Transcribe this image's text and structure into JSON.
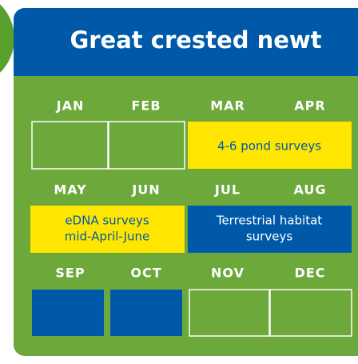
{
  "title": "Great crested newt",
  "months": [
    "JAN",
    "FEB",
    "MAR",
    "APR",
    "MAY",
    "JUN",
    "JUL",
    "AUG",
    "SEP",
    "OCT",
    "NOV",
    "DEC"
  ],
  "surveys": [
    {
      "lines": [
        "4-6 pond surveys"
      ]
    },
    {
      "lines": [
        "eDNA surveys",
        "mid-April-June"
      ]
    },
    {
      "lines": [
        "Terrestrial habitat",
        "surveys"
      ]
    }
  ]
}
